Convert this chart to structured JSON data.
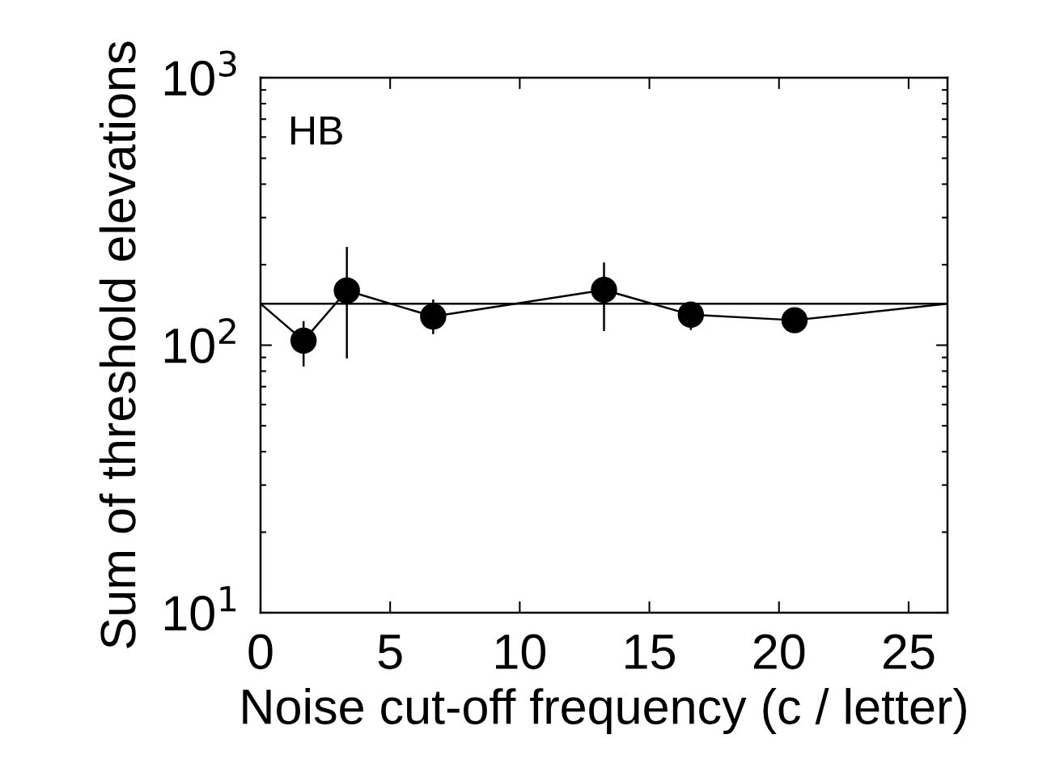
{
  "chart_data": {
    "type": "line",
    "xlabel": "Noise cut-off frequency (c / letter)",
    "ylabel": "Sum of threshold elevations",
    "annotations": [
      "HB"
    ],
    "log": "y",
    "xlim": [
      0,
      26.5
    ],
    "xticks": [
      0,
      5,
      10,
      15,
      20,
      25
    ],
    "ylim": [
      10,
      1000
    ],
    "yticks": [
      {
        "value": 10,
        "label": "10$^{1}$"
      },
      {
        "value": 100,
        "label": "10$^{2}$"
      },
      {
        "value": 1000,
        "label": "10$^{3}$"
      }
    ],
    "grid": false,
    "legend": false,
    "series": [
      {
        "color": "#000000",
        "marker": "none",
        "x": [
          0,
          1.66,
          3.33,
          6.66,
          13.25,
          16.6,
          20.6,
          26.5
        ],
        "values": [
          143,
          104,
          160,
          128,
          161,
          130,
          124,
          143
        ]
      },
      {
        "type": "scatter",
        "color": "#000000",
        "marker": "circle",
        "x": [
          1.66,
          3.33,
          6.66,
          13.25,
          16.6,
          20.6
        ],
        "values": [
          104,
          160,
          128,
          161,
          130,
          124
        ],
        "errors": [
          [
            84,
            122
          ],
          [
            90,
            231
          ],
          [
            111,
            147
          ],
          [
            114,
            202
          ],
          [
            115,
            130
          ],
          null
        ]
      }
    ],
    "ref_lines": [
      {
        "axis": "y",
        "value": 143,
        "color": "#000000",
        "line_style": "solid"
      }
    ]
  }
}
